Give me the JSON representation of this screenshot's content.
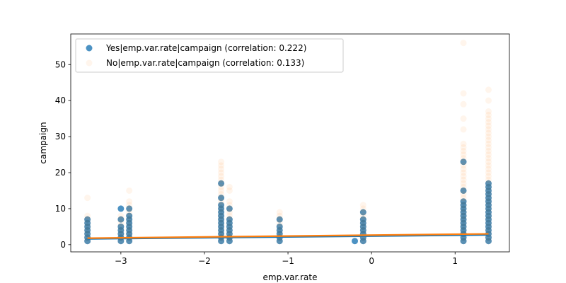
{
  "chart_data": {
    "type": "scatter",
    "xlabel": "emp.var.rate",
    "ylabel": "campaign",
    "xlim": [
      -3.6,
      1.65
    ],
    "ylim": [
      -2,
      58.5
    ],
    "x_ticks": [
      -3,
      -2,
      -1,
      0,
      1
    ],
    "x_tick_labels": [
      "−3",
      "−2",
      "−1",
      "0",
      "1"
    ],
    "y_ticks": [
      0,
      10,
      20,
      30,
      40,
      50
    ],
    "y_tick_labels": [
      "0",
      "10",
      "20",
      "30",
      "40",
      "50"
    ],
    "legend_position": "top-left",
    "series": [
      {
        "name": "Yes|emp.var.rate|campaign (correlation: 0.222)",
        "color": "#1f77b4",
        "opacity": 0.8,
        "fit_line": {
          "x": [
            -3.4,
            1.4
          ],
          "y": [
            1.6,
            2.7
          ]
        },
        "points": [
          {
            "x": -3.4,
            "y": [
              1,
              2,
              3,
              4,
              5,
              6,
              7
            ]
          },
          {
            "x": -3.0,
            "y": [
              1,
              2,
              3,
              4,
              5,
              7,
              10
            ]
          },
          {
            "x": -2.9,
            "y": [
              1,
              2,
              3,
              4,
              5,
              6,
              7,
              8,
              10
            ]
          },
          {
            "x": -1.8,
            "y": [
              1,
              2,
              3,
              4,
              5,
              6,
              7,
              8,
              9,
              10,
              11,
              13,
              17
            ]
          },
          {
            "x": -1.7,
            "y": [
              1,
              2,
              3,
              4,
              5,
              6,
              7,
              10
            ]
          },
          {
            "x": -1.1,
            "y": [
              1,
              2,
              3,
              4,
              5,
              7
            ]
          },
          {
            "x": -0.2,
            "y": [
              1
            ]
          },
          {
            "x": -0.1,
            "y": [
              1,
              2,
              3,
              4,
              5,
              6,
              7,
              9
            ]
          },
          {
            "x": 1.1,
            "y": [
              1,
              2,
              3,
              4,
              5,
              6,
              7,
              8,
              9,
              10,
              11,
              12,
              15,
              23
            ]
          },
          {
            "x": 1.4,
            "y": [
              1,
              2,
              3,
              4,
              5,
              6,
              7,
              8,
              9,
              10,
              11,
              12,
              13,
              14,
              15,
              16,
              17
            ]
          }
        ]
      },
      {
        "name": "No|emp.var.rate|campaign (correlation: 0.133)",
        "color": "#ff7f0e",
        "opacity": 0.08,
        "fit_line": {
          "x": [
            -3.4,
            1.4
          ],
          "y": [
            1.8,
            3.0
          ]
        },
        "points": [
          {
            "x": -3.4,
            "y": [
              1,
              2,
              3,
              4,
              5,
              6,
              7,
              8,
              13
            ]
          },
          {
            "x": -3.0,
            "y": [
              1,
              2,
              3,
              4,
              5,
              6,
              7,
              8
            ]
          },
          {
            "x": -2.9,
            "y": [
              1,
              2,
              3,
              4,
              5,
              6,
              7,
              8,
              9,
              10,
              11,
              12,
              15
            ]
          },
          {
            "x": -1.8,
            "y": [
              1,
              2,
              3,
              4,
              5,
              6,
              7,
              8,
              9,
              10,
              11,
              12,
              13,
              14,
              15,
              16,
              17,
              18,
              19,
              20,
              21,
              22,
              23
            ]
          },
          {
            "x": -1.7,
            "y": [
              1,
              2,
              3,
              4,
              5,
              6,
              7,
              8,
              9,
              10,
              11,
              12,
              15,
              16
            ]
          },
          {
            "x": -1.1,
            "y": [
              1,
              2,
              3,
              4,
              5,
              6,
              7,
              8,
              9
            ]
          },
          {
            "x": -0.1,
            "y": [
              1,
              2,
              3,
              4,
              5,
              6,
              7,
              8,
              9,
              10,
              11
            ]
          },
          {
            "x": 1.1,
            "y": [
              1,
              2,
              3,
              4,
              5,
              6,
              7,
              8,
              9,
              10,
              11,
              12,
              13,
              14,
              15,
              16,
              17,
              18,
              19,
              20,
              21,
              22,
              23,
              24,
              25,
              26,
              27,
              28,
              32,
              35,
              39,
              42,
              56
            ]
          },
          {
            "x": 1.4,
            "y": [
              1,
              2,
              3,
              4,
              5,
              6,
              7,
              8,
              9,
              10,
              11,
              12,
              13,
              14,
              15,
              16,
              17,
              18,
              19,
              20,
              21,
              22,
              23,
              24,
              25,
              26,
              27,
              28,
              29,
              30,
              31,
              32,
              33,
              34,
              35,
              36,
              37,
              40,
              43
            ]
          }
        ]
      }
    ]
  }
}
